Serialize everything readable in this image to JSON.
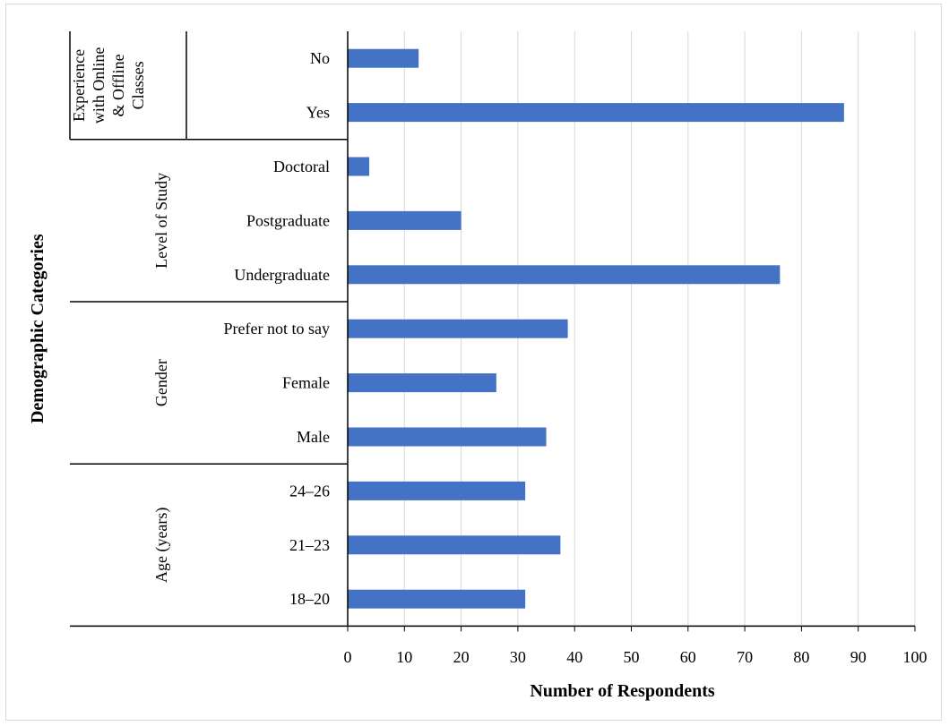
{
  "chart_data": {
    "type": "bar",
    "orientation": "horizontal",
    "xlabel": "Number of Respondents",
    "ylabel": "Demographic Categories",
    "xlim": [
      0,
      100
    ],
    "xticks": [
      0,
      10,
      20,
      30,
      40,
      50,
      60,
      70,
      80,
      90,
      100
    ],
    "grid": "vertical",
    "bar_color": "#4472C4",
    "groups": [
      {
        "name": "Experience with Online & Offline Classes",
        "name_lines": [
          "Experience",
          "with Online",
          "& Offline",
          "Classes"
        ],
        "categories": [
          "No",
          "Yes"
        ],
        "values": [
          12.5,
          87.5
        ]
      },
      {
        "name": "Level of Study",
        "name_lines": [
          "Level of Study"
        ],
        "categories": [
          "Doctoral",
          "Postgraduate",
          "Undergraduate"
        ],
        "values": [
          3.8,
          20,
          76.2
        ]
      },
      {
        "name": "Gender",
        "name_lines": [
          "Gender"
        ],
        "categories": [
          "Prefer not to say",
          "Female",
          "Male"
        ],
        "values": [
          38.8,
          26.2,
          35
        ]
      },
      {
        "name": "Age (years)",
        "name_lines": [
          "Age (years)"
        ],
        "categories": [
          "24–26",
          "21–23",
          "18–20"
        ],
        "values": [
          31.3,
          37.5,
          31.3
        ]
      }
    ]
  }
}
